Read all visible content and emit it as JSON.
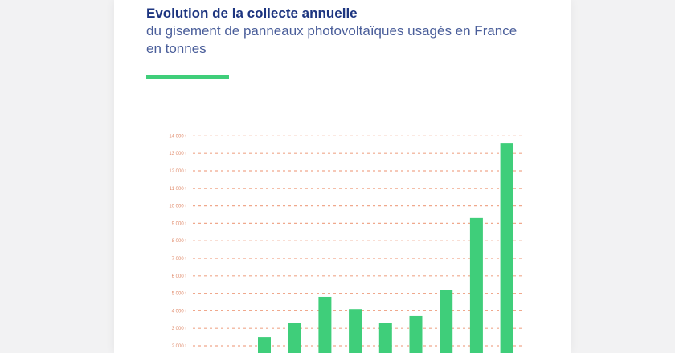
{
  "title": "Evolution de la collecte annuelle",
  "subtitle": "du gisement de panneaux photovoltaïques usagés en France en tonnes",
  "colors": {
    "bar": "#3fce7a",
    "grid": "#f0a88c",
    "title": "#1d3580",
    "subtitle": "#4a5e9a",
    "accent": "#3fce7a"
  },
  "chart_data": {
    "type": "bar",
    "title": "Evolution de la collecte annuelle",
    "subtitle": "du gisement de panneaux photovoltaïques usagés en France en tonnes",
    "ytick_labels": [
      "2 000 t",
      "3 000 t",
      "4 000 t",
      "5 000 t",
      "6 000 t",
      "7 000 t",
      "8 000 t",
      "9 000 t",
      "10 000 t",
      "11 000 t",
      "12 000 t",
      "13 000 t",
      "14 000 t"
    ],
    "yticks": [
      2000,
      3000,
      4000,
      5000,
      6000,
      7000,
      8000,
      9000,
      10000,
      11000,
      12000,
      13000,
      14000
    ],
    "ylim": [
      2000,
      14000
    ],
    "grid": true,
    "values": [
      2500,
      3300,
      4800,
      4100,
      3300,
      3700,
      5200,
      9300,
      13600
    ]
  }
}
